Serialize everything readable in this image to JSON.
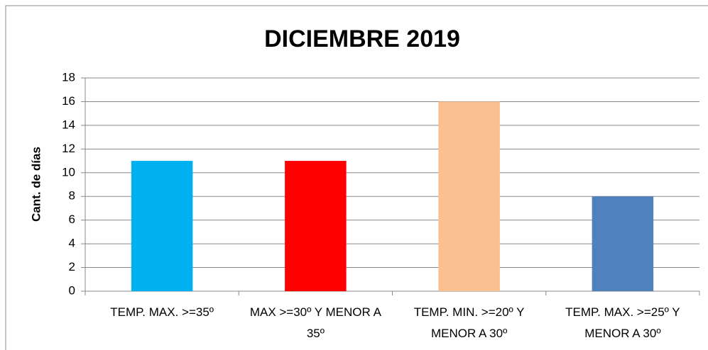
{
  "chart_data": {
    "type": "bar",
    "title": "DICIEMBRE 2019",
    "y_label": "Cant. de días",
    "categories": [
      "TEMP. MAX. >=35º",
      "MAX >=30º Y MENOR A 35º",
      "TEMP. MIN. >=20º Y MENOR A 30º",
      "TEMP. MAX. >=25º Y MENOR A 30º"
    ],
    "values": [
      11,
      11,
      16,
      8
    ],
    "colors": [
      "#00b0f0",
      "#ff0000",
      "#fac090",
      "#4f81bd"
    ],
    "ylim": [
      0,
      18
    ],
    "yticks": [
      0,
      2,
      4,
      6,
      8,
      10,
      12,
      14,
      16,
      18
    ],
    "grid": true
  }
}
